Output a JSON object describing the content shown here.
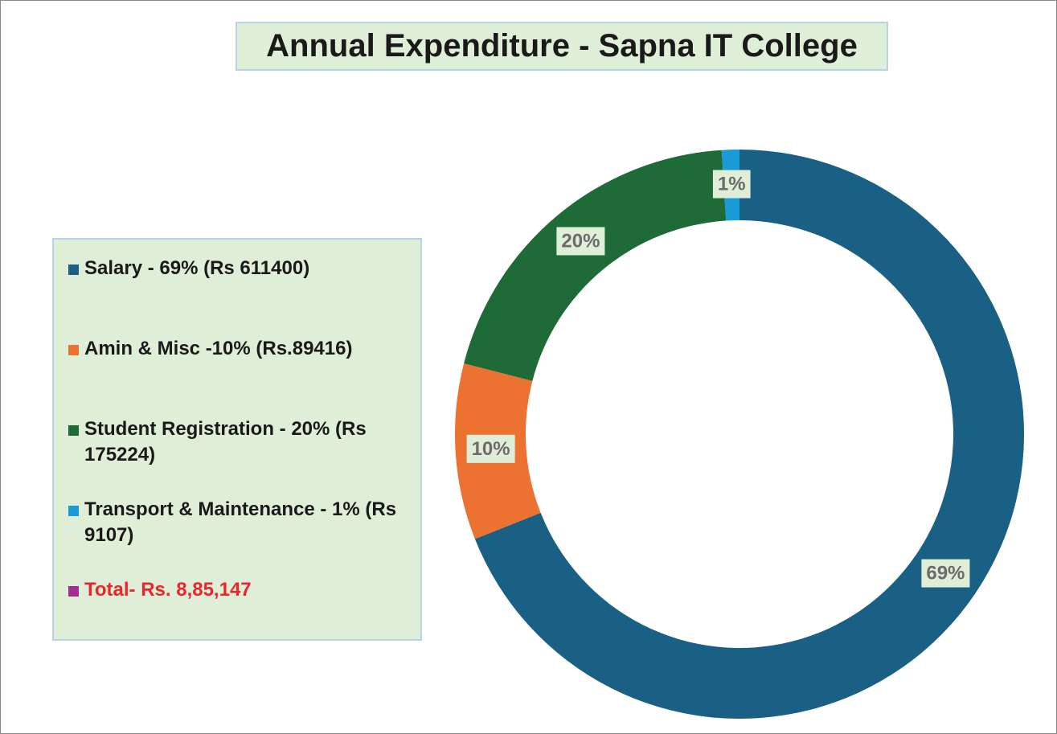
{
  "chart_data": {
    "type": "donut",
    "title": "Annual Expenditure - Sapna IT College",
    "categories": [
      "Salary - 69% (Rs 611400)",
      "Amin & Misc -10% (Rs.89416)",
      "Student Registration - 20% (Rs 175224)",
      "Transport & Maintenance - 1% (Rs 9107)"
    ],
    "values": [
      69,
      10,
      20,
      1
    ],
    "value_labels": [
      "69%",
      "10%",
      "20%",
      "1%"
    ],
    "colors": [
      "#1a6084",
      "#ec7232",
      "#1e6b37",
      "#1a9ad6"
    ],
    "legend_extra": {
      "text": "Total- Rs. 8,85,147",
      "color": "#a0308f",
      "text_color": "#e8262b"
    }
  }
}
